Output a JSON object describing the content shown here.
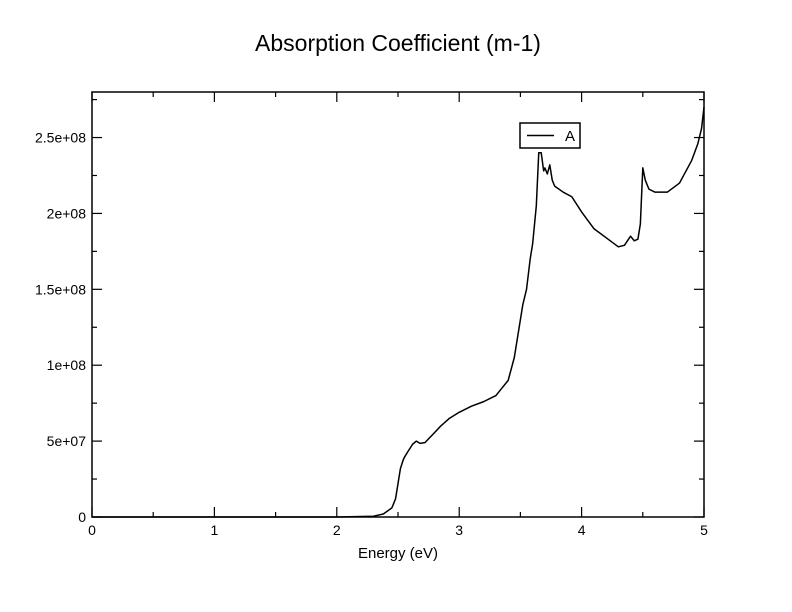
{
  "chart_data": {
    "type": "line",
    "title": "Absorption Coefficient (m-1)",
    "xlabel": "Energy (eV)",
    "ylabel": "",
    "xlim": [
      0,
      5
    ],
    "ylim": [
      0,
      280000000
    ],
    "x_ticks": [
      0,
      1,
      2,
      3,
      4,
      5
    ],
    "x_tick_labels": [
      "0",
      "1",
      "2",
      "3",
      "4",
      "5"
    ],
    "y_ticks": [
      0,
      50000000,
      100000000,
      150000000,
      200000000,
      250000000
    ],
    "y_tick_labels": [
      "0",
      "5e+07",
      "1e+08",
      "1.5e+08",
      "2e+08",
      "2.5e+08"
    ],
    "grid": false,
    "legend": {
      "position": "top-right",
      "entries": [
        "A"
      ]
    },
    "series": [
      {
        "name": "A",
        "color": "#000000",
        "x": [
          0,
          1,
          2,
          2.3,
          2.38,
          2.45,
          2.48,
          2.5,
          2.52,
          2.54,
          2.55,
          2.58,
          2.62,
          2.65,
          2.68,
          2.72,
          2.78,
          2.85,
          2.92,
          3.0,
          3.1,
          3.2,
          3.3,
          3.4,
          3.45,
          3.48,
          3.5,
          3.52,
          3.55,
          3.58,
          3.6,
          3.63,
          3.65,
          3.67,
          3.69,
          3.7,
          3.72,
          3.74,
          3.76,
          3.78,
          3.85,
          3.92,
          4.0,
          4.1,
          4.2,
          4.3,
          4.35,
          4.4,
          4.43,
          4.46,
          4.48,
          4.5,
          4.52,
          4.55,
          4.6,
          4.7,
          4.8,
          4.9,
          4.95,
          4.98,
          5.0
        ],
        "y": [
          0,
          0,
          0,
          500000,
          2000000,
          6000000,
          12000000,
          22000000,
          32000000,
          37000000,
          39000000,
          43000000,
          48000000,
          50000000,
          48500000,
          49000000,
          54000000,
          60000000,
          65000000,
          69000000,
          73000000,
          76000000,
          80000000,
          90000000,
          105000000,
          120000000,
          130000000,
          140000000,
          150000000,
          170000000,
          180000000,
          205000000,
          240000000,
          240000000,
          228000000,
          230000000,
          226000000,
          232000000,
          222000000,
          218000000,
          214000000,
          211000000,
          201000000,
          190000000,
          184000000,
          178000000,
          179000000,
          185000000,
          182000000,
          183000000,
          193000000,
          230000000,
          222000000,
          216000000,
          214000000,
          214000000,
          220000000,
          235000000,
          246000000,
          256000000,
          270000000
        ]
      }
    ]
  }
}
